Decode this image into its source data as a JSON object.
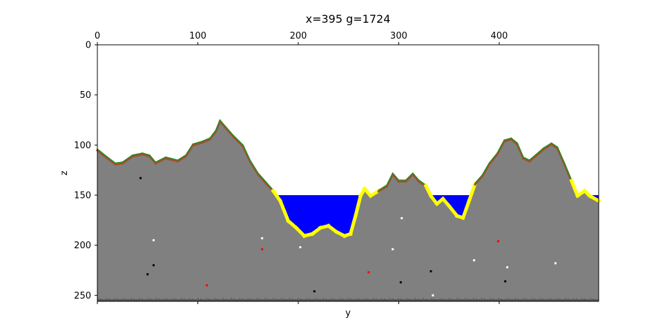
{
  "chart_data": {
    "type": "heatmap",
    "title": "x=395 g=1724",
    "xlabel": "y",
    "ylabel": "z",
    "xlim": [
      0,
      499
    ],
    "ylim": [
      256,
      0
    ],
    "xticks_top": [
      "0",
      "100",
      "200",
      "300",
      "400"
    ],
    "xticks_bottom": [
      "",
      "",
      "",
      "",
      ""
    ],
    "yticks": [
      "0",
      "50",
      "100",
      "150",
      "200",
      "250"
    ],
    "water_level": 150,
    "surface_profile": [
      [
        0,
        104
      ],
      [
        10,
        112
      ],
      [
        18,
        118
      ],
      [
        25,
        117
      ],
      [
        35,
        110
      ],
      [
        45,
        108
      ],
      [
        52,
        110
      ],
      [
        58,
        117
      ],
      [
        68,
        112
      ],
      [
        80,
        115
      ],
      [
        88,
        110
      ],
      [
        95,
        99
      ],
      [
        105,
        96
      ],
      [
        112,
        93
      ],
      [
        118,
        85
      ],
      [
        122,
        75
      ],
      [
        128,
        82
      ],
      [
        135,
        90
      ],
      [
        145,
        100
      ],
      [
        152,
        115
      ],
      [
        160,
        128
      ],
      [
        168,
        137
      ],
      [
        175,
        145
      ],
      [
        182,
        155
      ],
      [
        190,
        175
      ],
      [
        198,
        182
      ],
      [
        206,
        190
      ],
      [
        214,
        188
      ],
      [
        222,
        182
      ],
      [
        230,
        180
      ],
      [
        238,
        186
      ],
      [
        246,
        190
      ],
      [
        252,
        188
      ],
      [
        257,
        170
      ],
      [
        262,
        150
      ],
      [
        266,
        143
      ],
      [
        272,
        150
      ],
      [
        280,
        145
      ],
      [
        288,
        140
      ],
      [
        294,
        128
      ],
      [
        300,
        135
      ],
      [
        307,
        135
      ],
      [
        314,
        128
      ],
      [
        320,
        135
      ],
      [
        327,
        140
      ],
      [
        332,
        150
      ],
      [
        338,
        158
      ],
      [
        344,
        153
      ],
      [
        350,
        160
      ],
      [
        358,
        170
      ],
      [
        364,
        172
      ],
      [
        370,
        155
      ],
      [
        376,
        138
      ],
      [
        383,
        130
      ],
      [
        390,
        118
      ],
      [
        398,
        108
      ],
      [
        405,
        95
      ],
      [
        412,
        93
      ],
      [
        418,
        98
      ],
      [
        424,
        112
      ],
      [
        430,
        115
      ],
      [
        436,
        110
      ],
      [
        444,
        103
      ],
      [
        452,
        98
      ],
      [
        458,
        102
      ],
      [
        465,
        118
      ],
      [
        472,
        135
      ],
      [
        478,
        150
      ],
      [
        485,
        145
      ],
      [
        490,
        150
      ],
      [
        499,
        155
      ]
    ],
    "ores": [
      {
        "y": 43,
        "z": 133,
        "color": "#000000"
      },
      {
        "y": 56,
        "z": 220,
        "color": "#000000"
      },
      {
        "y": 50,
        "z": 229,
        "color": "#000000"
      },
      {
        "y": 56,
        "z": 195,
        "color": "#ffffff"
      },
      {
        "y": 109,
        "z": 240,
        "color": "#ff0000"
      },
      {
        "y": 164,
        "z": 204,
        "color": "#ff0000"
      },
      {
        "y": 164,
        "z": 193,
        "color": "#ffffff"
      },
      {
        "y": 202,
        "z": 202,
        "color": "#ffffff"
      },
      {
        "y": 216,
        "z": 246,
        "color": "#000000"
      },
      {
        "y": 270,
        "z": 227,
        "color": "#ff0000"
      },
      {
        "y": 294,
        "z": 204,
        "color": "#ffffff"
      },
      {
        "y": 303,
        "z": 173,
        "color": "#ffffff"
      },
      {
        "y": 302,
        "z": 237,
        "color": "#000000"
      },
      {
        "y": 332,
        "z": 226,
        "color": "#000000"
      },
      {
        "y": 334,
        "z": 250,
        "color": "#ffffff"
      },
      {
        "y": 375,
        "z": 215,
        "color": "#ffffff"
      },
      {
        "y": 399,
        "z": 196,
        "color": "#ff0000"
      },
      {
        "y": 408,
        "z": 222,
        "color": "#ffffff"
      },
      {
        "y": 406,
        "z": 236,
        "color": "#000000"
      },
      {
        "y": 456,
        "z": 218,
        "color": "#ffffff"
      }
    ],
    "colors": {
      "stone": "#808080",
      "water": "#0000ff",
      "sand": "#ffff00",
      "dirt": "#a0522d",
      "grass": "#228b22",
      "air": "#ffffff",
      "bedrock": "#555555"
    },
    "grid": false
  }
}
